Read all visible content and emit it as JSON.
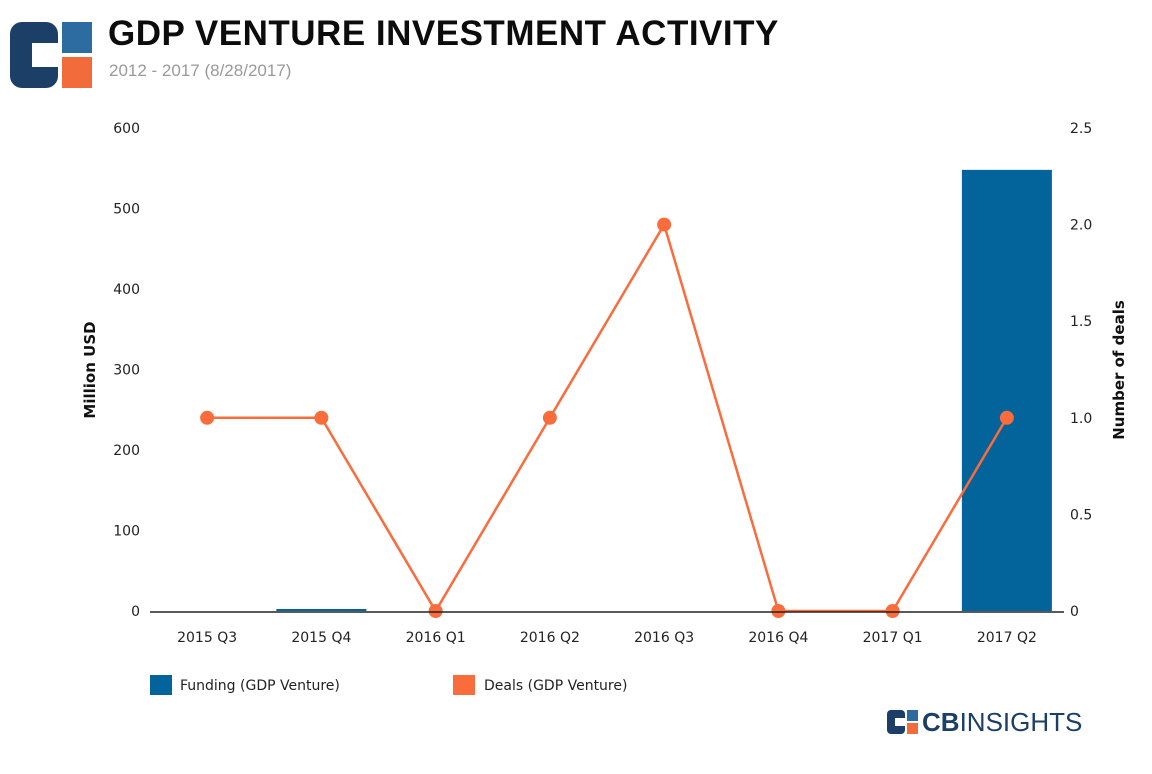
{
  "header": {
    "title": "GDP VENTURE INVESTMENT ACTIVITY",
    "subtitle": "2012 - 2017 (8/28/2017)"
  },
  "brand": {
    "part1": "CB",
    "part2": "INSIGHTS"
  },
  "colors": {
    "funding": "#03639b",
    "deals": "#fa6c3b",
    "logo_dark": "#1b3f66",
    "logo_blue": "#2d6ca0",
    "logo_orange": "#f26b3a"
  },
  "chart_data": {
    "type": "bar",
    "categories": [
      "2015 Q3",
      "2015 Q4",
      "2016 Q1",
      "2016 Q2",
      "2016 Q3",
      "2016 Q4",
      "2017 Q1",
      "2017 Q2"
    ],
    "series": [
      {
        "name": "Funding (GDP Venture)",
        "type": "bar",
        "axis": "left",
        "values": [
          0,
          1,
          0,
          0,
          0,
          0,
          0,
          548
        ]
      },
      {
        "name": "Deals (GDP Venture)",
        "type": "line",
        "axis": "right",
        "values": [
          1,
          1,
          0,
          1,
          2,
          0,
          0,
          1
        ]
      }
    ],
    "y_left": {
      "label": "Million USD",
      "ylim": [
        0,
        600
      ],
      "ticks": [
        "0",
        "100",
        "200",
        "300",
        "400",
        "500",
        "600"
      ]
    },
    "y_right": {
      "label": "Number of deals",
      "ylim": [
        0,
        2.5
      ],
      "ticks": [
        "0",
        "0.5",
        "1.0",
        "1.5",
        "2.0",
        "2.5"
      ]
    },
    "grid": false,
    "legend": "bottom-left"
  }
}
